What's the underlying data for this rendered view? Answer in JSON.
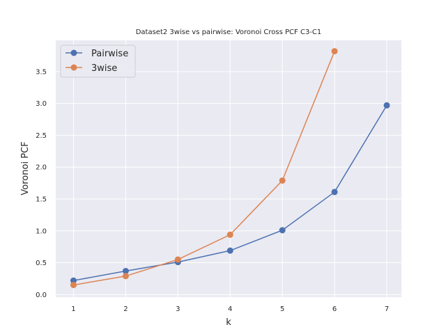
{
  "chart_data": {
    "type": "line",
    "title": "Dataset2 3wise vs pairwise: Voronoi Cross PCF C3-C1",
    "xlabel": "k",
    "ylabel": "Voronoi PCF",
    "xlim": [
      0.66,
      7.28
    ],
    "ylim": [
      -0.04,
      3.99
    ],
    "xticks": [
      1,
      2,
      3,
      4,
      5,
      6,
      7
    ],
    "yticks": [
      0.0,
      0.5,
      1.0,
      1.5,
      2.0,
      2.5,
      3.0,
      3.5
    ],
    "ytick_labels": [
      "0.0",
      "0.5",
      "1.0",
      "1.5",
      "2.0",
      "2.5",
      "3.0",
      "3.5"
    ],
    "grid": true,
    "legend_position": "top-left",
    "series": [
      {
        "name": "Pairwise",
        "color": "#4c72b0",
        "x": [
          1,
          2,
          3,
          4,
          5,
          6,
          7
        ],
        "y": [
          0.22,
          0.37,
          0.51,
          0.69,
          1.01,
          1.61,
          2.97
        ]
      },
      {
        "name": "3wise",
        "color": "#dd8452",
        "x": [
          1,
          2,
          3,
          4,
          5,
          6
        ],
        "y": [
          0.15,
          0.29,
          0.55,
          0.94,
          1.79,
          3.82
        ]
      }
    ]
  }
}
